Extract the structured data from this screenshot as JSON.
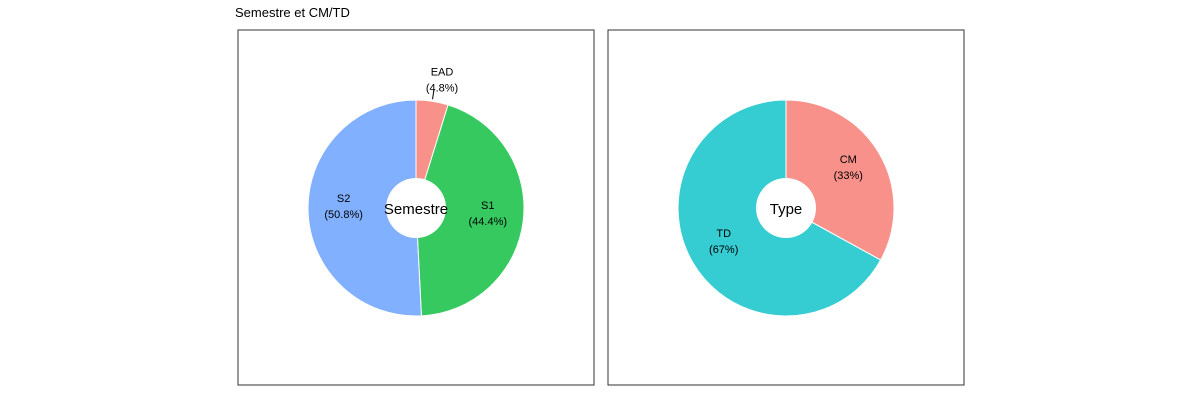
{
  "figure": {
    "title": "Semestre et CM/TD"
  },
  "chart_data": [
    {
      "type": "pie",
      "center_label": "Semestre",
      "categories": [
        "EAD",
        "S1",
        "S2"
      ],
      "values": [
        4.8,
        44.4,
        50.8
      ],
      "percent_labels": [
        "(4.8%)",
        "(44.4%)",
        "(50.8%)"
      ],
      "colors": [
        "#F8918A",
        "#35C95F",
        "#80B0FF"
      ],
      "donut": true,
      "start": "12 o'clock",
      "direction": "clockwise",
      "legend": "none"
    },
    {
      "type": "pie",
      "center_label": "Type",
      "categories": [
        "CM",
        "TD"
      ],
      "values": [
        33,
        67
      ],
      "percent_labels": [
        "(33%)",
        "(67%)"
      ],
      "colors": [
        "#F8918A",
        "#35CCD2"
      ],
      "donut": true,
      "start": "12 o'clock",
      "direction": "clockwise",
      "legend": "none"
    }
  ]
}
